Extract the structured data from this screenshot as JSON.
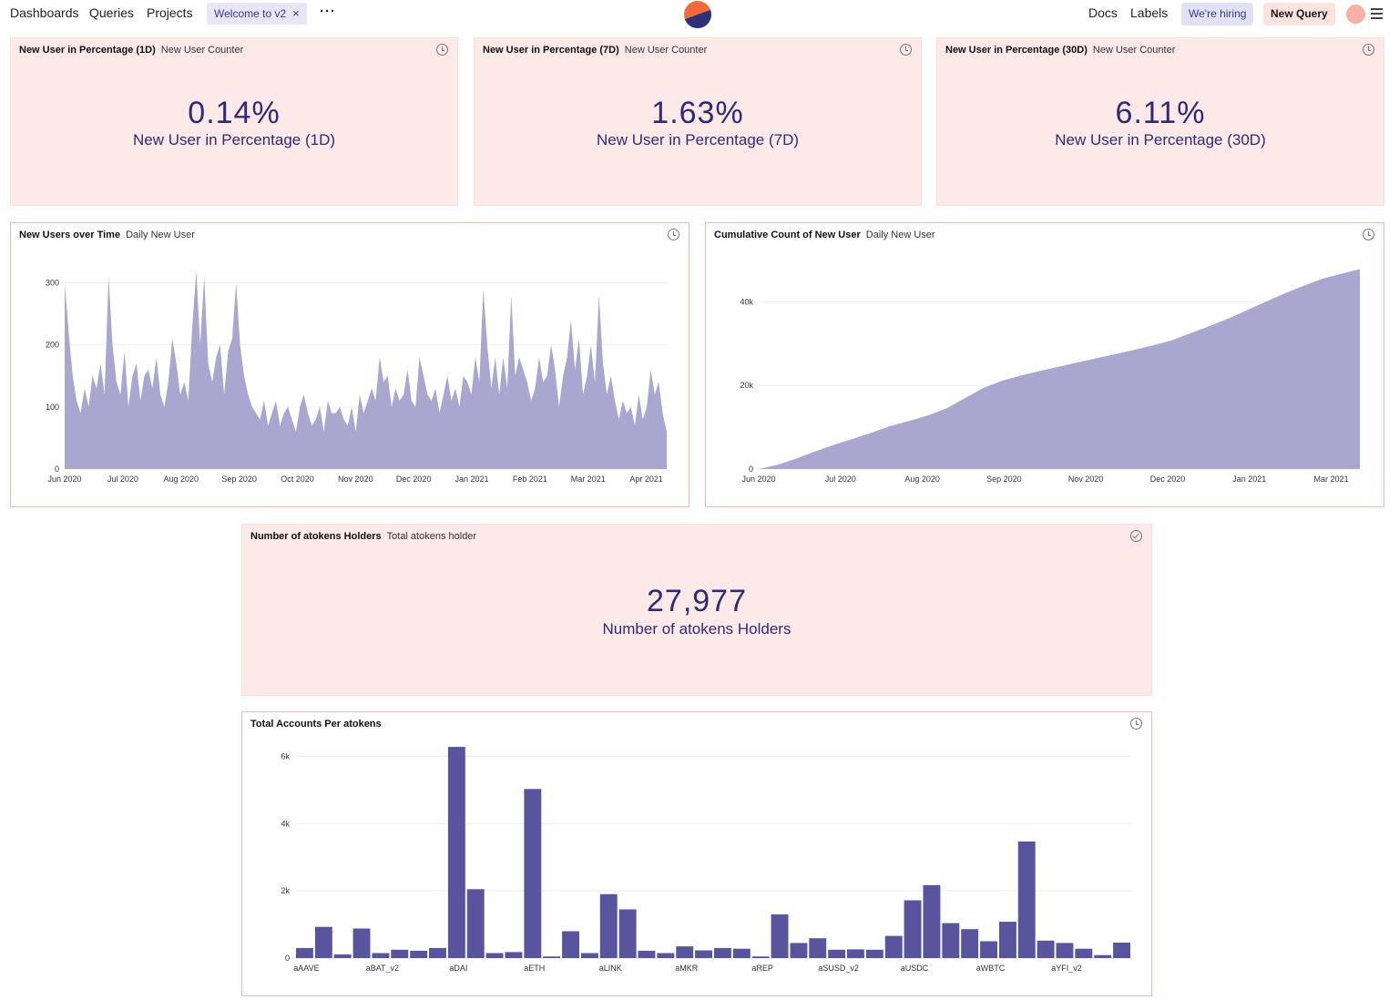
{
  "nav": {
    "dashboards": "Dashboards",
    "queries": "Queries",
    "projects": "Projects",
    "tab_label": "Welcome to v2",
    "tab_close": "×",
    "more": "···",
    "docs": "Docs",
    "labels": "Labels",
    "hiring": "We're hiring",
    "new_query": "New Query"
  },
  "counters": [
    {
      "title": "New User in Percentage (1D)",
      "subtitle": "New User Counter",
      "value": "0.14%",
      "label": "New User in Percentage (1D)"
    },
    {
      "title": "New User in Percentage (7D)",
      "subtitle": "New User Counter",
      "value": "1.63%",
      "label": "New User in Percentage (7D)"
    },
    {
      "title": "New User in Percentage (30D)",
      "subtitle": "New User Counter",
      "value": "6.11%",
      "label": "New User in Percentage (30D)"
    }
  ],
  "holders": {
    "title": "Number of atokens Holders",
    "subtitle": "Total atokens holder",
    "value": "27,977",
    "label": "Number of atokens Holders"
  },
  "colors": {
    "series": "#a9a7d0",
    "bars": "#58549e",
    "grid": "#eeeeee"
  },
  "chart_data": [
    {
      "type": "area",
      "title": "New Users over Time",
      "subtitle": "Daily New User",
      "ylim": [
        0,
        330
      ],
      "yticks": [
        0,
        100,
        200,
        300
      ],
      "ytick_labels": [
        "0",
        "100",
        "200",
        "300"
      ],
      "xtick_labels": [
        "Jun 2020",
        "Jul 2020",
        "Aug 2020",
        "Sep 2020",
        "Oct 2020",
        "Nov 2020",
        "Dec 2020",
        "Jan 2021",
        "Feb 2021",
        "Mar 2021",
        "Apr 2021"
      ],
      "values": [
        300,
        220,
        150,
        110,
        90,
        130,
        100,
        150,
        130,
        170,
        120,
        310,
        200,
        140,
        120,
        190,
        100,
        150,
        170,
        110,
        150,
        160,
        130,
        180,
        120,
        100,
        140,
        210,
        170,
        120,
        140,
        110,
        230,
        320,
        200,
        310,
        170,
        140,
        180,
        200,
        120,
        190,
        210,
        300,
        200,
        150,
        120,
        100,
        90,
        80,
        110,
        70,
        90,
        110,
        70,
        90,
        100,
        80,
        60,
        100,
        120,
        90,
        70,
        80,
        100,
        60,
        110,
        90,
        90,
        100,
        80,
        70,
        100,
        60,
        120,
        90,
        110,
        130,
        110,
        180,
        140,
        150,
        100,
        130,
        110,
        120,
        160,
        110,
        100,
        180,
        150,
        120,
        110,
        130,
        90,
        120,
        150,
        110,
        130,
        100,
        150,
        140,
        120,
        180,
        140,
        290,
        200,
        130,
        180,
        120,
        180,
        130,
        280,
        150,
        180,
        160,
        140,
        110,
        130,
        180,
        140,
        150,
        200,
        160,
        100,
        150,
        180,
        240,
        160,
        210,
        120,
        150,
        200,
        140,
        280,
        170,
        120,
        150,
        110,
        80,
        110,
        90,
        100,
        70,
        120,
        80,
        100,
        160,
        120,
        140,
        90,
        60
      ]
    },
    {
      "type": "area",
      "title": "Cumulative Count of New User",
      "subtitle": "Daily New User",
      "ylim": [
        0,
        49000
      ],
      "yticks": [
        0,
        20000,
        40000
      ],
      "ytick_labels": [
        "0",
        "20k",
        "40k"
      ],
      "xtick_labels": [
        "Jun 2020",
        "Jul 2020",
        "Aug 2020",
        "Sep 2020",
        "Nov 2020",
        "Dec 2020",
        "Jan 2021",
        "Mar 2021"
      ],
      "values": [
        0,
        1000,
        2500,
        4200,
        5800,
        7200,
        8700,
        10300,
        11500,
        12800,
        14500,
        17000,
        19500,
        21200,
        22400,
        23500,
        24500,
        25500,
        26500,
        27500,
        28500,
        29600,
        30800,
        32500,
        34200,
        36000,
        38000,
        40000,
        42000,
        43800,
        45500,
        46700,
        47800
      ]
    },
    {
      "type": "bar",
      "title": "Total Accounts Per atokens",
      "ylim": [
        0,
        6500
      ],
      "yticks": [
        0,
        2000,
        4000,
        6000
      ],
      "ytick_labels": [
        "0",
        "2k",
        "4k",
        "6k"
      ],
      "xtick_labels": [
        "aAAVE",
        "aBAT_v2",
        "aDAI",
        "aETH",
        "aLINK",
        "aMKR",
        "aREP",
        "aSUSD_v2",
        "aUSDC",
        "aWBTC",
        "aYFI_v2"
      ],
      "xtick_positions": [
        0,
        4,
        8,
        12,
        16,
        20,
        24,
        28,
        32,
        36,
        40
      ],
      "values": [
        300,
        930,
        110,
        880,
        150,
        250,
        220,
        300,
        6280,
        2050,
        150,
        180,
        5030,
        50,
        800,
        150,
        1900,
        1450,
        220,
        150,
        350,
        230,
        300,
        280,
        50,
        1300,
        450,
        590,
        250,
        260,
        250,
        660,
        1720,
        2170,
        1040,
        860,
        500,
        1080,
        3470,
        520,
        450,
        280,
        90,
        460
      ]
    }
  ]
}
